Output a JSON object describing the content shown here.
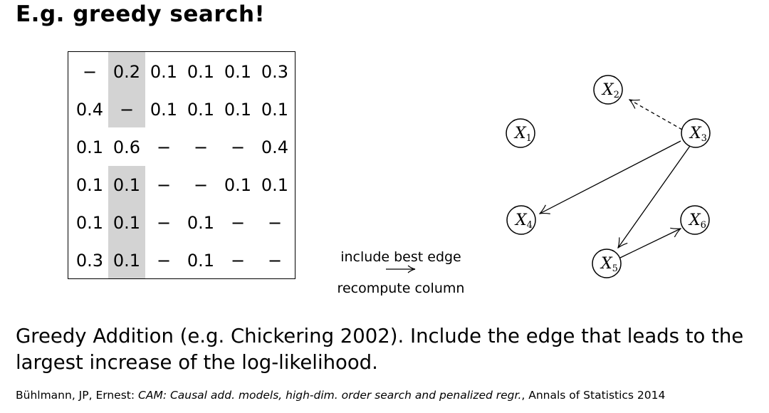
{
  "slide": {
    "title": "E.g. greedy search!",
    "matrix": {
      "rows": [
        [
          "−",
          "0.2",
          "0.1",
          "0.1",
          "0.1",
          "0.3"
        ],
        [
          "0.4",
          "−",
          "0.1",
          "0.1",
          "0.1",
          "0.1"
        ],
        [
          "0.1",
          "0.6",
          "−",
          "−",
          "−",
          "0.4"
        ],
        [
          "0.1",
          "0.1",
          "−",
          "−",
          "0.1",
          "0.1"
        ],
        [
          "0.1",
          "0.1",
          "−",
          "0.1",
          "−",
          "−"
        ],
        [
          "0.3",
          "0.1",
          "−",
          "0.1",
          "−",
          "−"
        ]
      ],
      "highlighted_column": 2,
      "selected_cell": {
        "row": 3,
        "column": 2
      }
    },
    "step_label_top": "include best edge",
    "step_label_bottom": "recompute column",
    "graph": {
      "nodes": [
        {
          "id": "X1",
          "base": "X",
          "sub": "1"
        },
        {
          "id": "X2",
          "base": "X",
          "sub": "2"
        },
        {
          "id": "X3",
          "base": "X",
          "sub": "3"
        },
        {
          "id": "X4",
          "base": "X",
          "sub": "4"
        },
        {
          "id": "X5",
          "base": "X",
          "sub": "5"
        },
        {
          "id": "X6",
          "base": "X",
          "sub": "6"
        }
      ],
      "edges": [
        {
          "from": "X3",
          "to": "X2",
          "style": "dashed"
        },
        {
          "from": "X3",
          "to": "X4",
          "style": "solid"
        },
        {
          "from": "X3",
          "to": "X5",
          "style": "solid"
        },
        {
          "from": "X5",
          "to": "X6",
          "style": "solid"
        }
      ]
    },
    "caption": "Greedy Addition (e.g. Chickering 2002). Include the edge that leads to the largest increase of the log-likelihood.",
    "reference": {
      "authors": "Bühlmann, JP, Ernest: ",
      "title": "CAM: Causal add. models, high-dim. order search and penalized regr.",
      "venue": ", Annals of Statistics 2014"
    }
  }
}
